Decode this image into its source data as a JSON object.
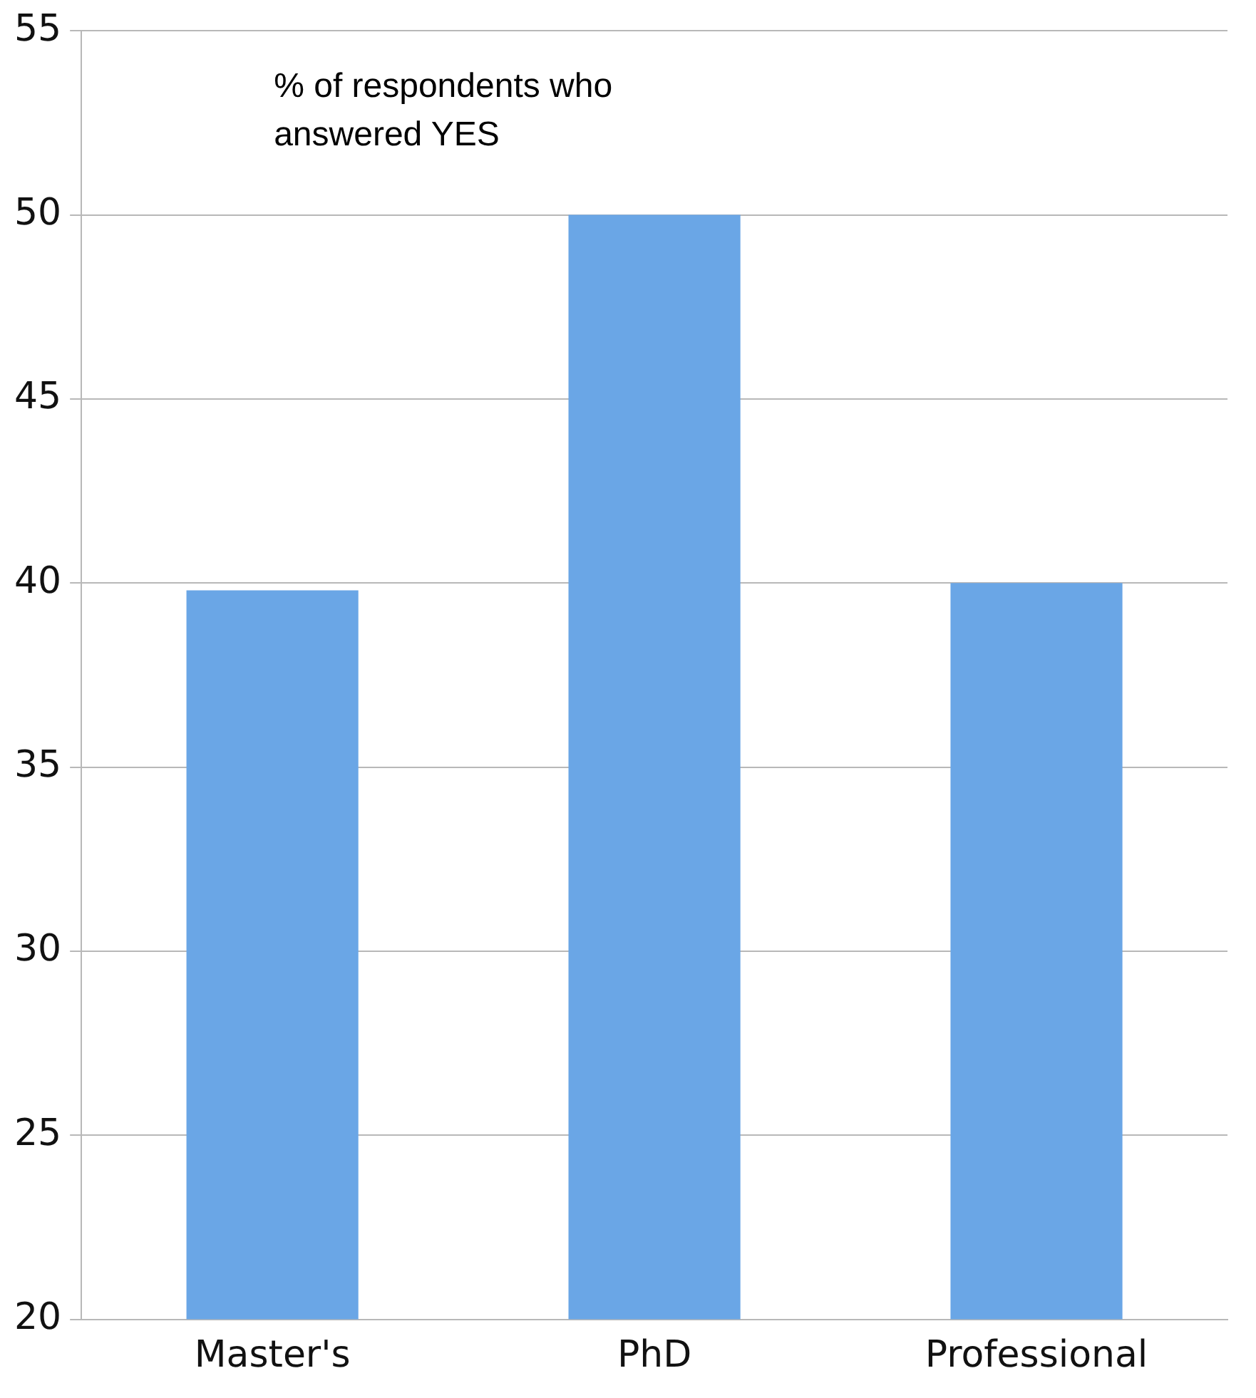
{
  "chart_data": {
    "type": "bar",
    "categories": [
      "Master's",
      "PhD",
      "Professional"
    ],
    "values": [
      39.8,
      50,
      40
    ],
    "color": "#6aa6e6",
    "ylim": [
      20,
      55
    ],
    "yticks": [
      20,
      25,
      30,
      35,
      40,
      45,
      50,
      55
    ],
    "grid": "y",
    "annotations": [
      "% of respondents who answered YES"
    ]
  }
}
